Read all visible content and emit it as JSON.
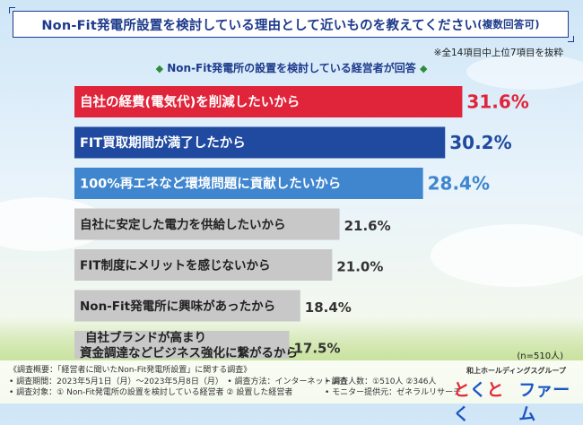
{
  "title": {
    "main": "Non-Fit発電所設置を検討している理由として近いものを教えてください",
    "note": "(複数回答可)"
  },
  "note_top": "※全14項目中上位7項目を抜粋",
  "subheading": {
    "text": "Non-Fit発電所の設置を検討している経営者が回答",
    "left_marker": "◆",
    "right_marker": "◆"
  },
  "n_label": "(n=510人)",
  "footer": {
    "line1_col1": "《調査概要：「経営者に聞いたNon-Fit発電所設置」に関する調査》",
    "line1_col2": "和上ホールディングスグループ",
    "line2_col1": "• 調査期間：2023年5月1日（月）～2023年5月8日（月）　• 調査方法：インターネット調査",
    "line2_col2": "• 調査人数：①510人 ②346人",
    "line3_col1": "• 調査対象：① Non-Fit発電所の設置を検討している経営者 ② 設置した経営者",
    "line3_col2": "• モニター提供元：ゼネラルリサーチ"
  },
  "logo": {
    "mark_text": "とくとく",
    "name_text": "ファーム"
  },
  "colors": {
    "red": "#e0243a",
    "blue_dark": "#1f4aa0",
    "blue_light": "#3f86cf",
    "gray": "#c8c8c8",
    "text_dark": "#1d3a8c"
  },
  "chart_data": {
    "type": "bar",
    "orientation": "horizontal",
    "unit": "%",
    "xlim": [
      0,
      38
    ],
    "categories": [
      "自社の経費(電気代)を削減したいから",
      "FIT買取期間が満了したから",
      "100%再エネなど環境問題に貢献したいから",
      "自社に安定した電力を供給したいから",
      "FIT制度にメリットを感じないから",
      "Non-Fit発電所に興味があったから",
      "自社ブランドが高まり\n資金調達などビジネス強化に繋がるから"
    ],
    "values": [
      31.6,
      30.2,
      28.4,
      21.6,
      21.0,
      18.4,
      17.5
    ],
    "value_labels": [
      "31.6%",
      "30.2%",
      "28.4%",
      "21.6%",
      "21.0%",
      "18.4%",
      "17.5%"
    ],
    "bar_colors": [
      "#e0243a",
      "#1f4aa0",
      "#3f86cf",
      "#c8c8c8",
      "#c8c8c8",
      "#c8c8c8",
      "#c8c8c8"
    ],
    "label_colors": [
      "#ffffff",
      "#ffffff",
      "#ffffff",
      "#222222",
      "#222222",
      "#222222",
      "#222222"
    ],
    "value_colors": [
      "#e0243a",
      "#1f4aa0",
      "#3f86cf",
      "#333333",
      "#333333",
      "#333333",
      "#333333"
    ]
  }
}
